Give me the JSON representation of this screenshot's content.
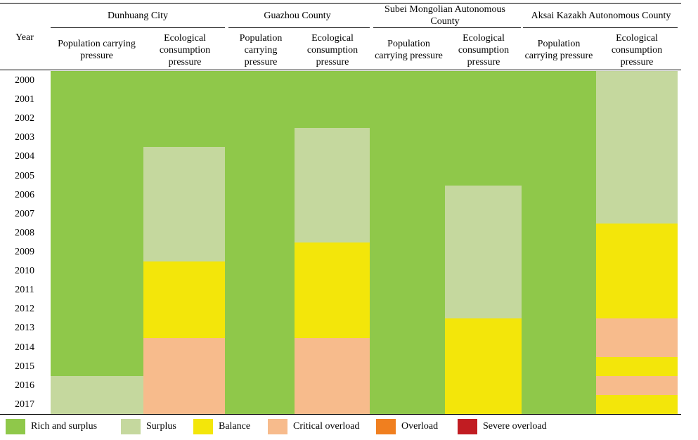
{
  "header": {
    "year_label": "Year",
    "regions": [
      "Dunhuang City",
      "Guazhou County",
      "Subei Mongolian Autonomous County",
      "Aksai Kazakh Autonomous County"
    ],
    "sub_labels": [
      "Population carrying pressure",
      "Ecological consumption pressure"
    ]
  },
  "colors": {
    "Rich and surplus": "#8fc84a",
    "Surplus": "#c5d89e",
    "Balance": "#f3e60a",
    "Critical overload": "#f7bb8c",
    "Overload": "#f07f1f",
    "Severe overload": "#c11c22"
  },
  "chart_data": {
    "type": "heatmap",
    "years": [
      "2000",
      "2001",
      "2002",
      "2003",
      "2004",
      "2005",
      "2006",
      "2007",
      "2008",
      "2009",
      "2010",
      "2011",
      "2012",
      "2013",
      "2014",
      "2015",
      "2016",
      "2017"
    ],
    "columns": [
      {
        "region": "Dunhuang City",
        "indicator": "Population carrying pressure",
        "segments": [
          {
            "from": "2000",
            "to": "2015",
            "level": "Rich and surplus"
          },
          {
            "from": "2016",
            "to": "2017",
            "level": "Surplus"
          }
        ]
      },
      {
        "region": "Dunhuang City",
        "indicator": "Ecological consumption pressure",
        "segments": [
          {
            "from": "2000",
            "to": "2003",
            "level": "Rich and surplus"
          },
          {
            "from": "2004",
            "to": "2009",
            "level": "Surplus"
          },
          {
            "from": "2010",
            "to": "2013",
            "level": "Balance"
          },
          {
            "from": "2014",
            "to": "2017",
            "level": "Critical overload"
          }
        ]
      },
      {
        "region": "Guazhou County",
        "indicator": "Population carrying pressure",
        "segments": [
          {
            "from": "2000",
            "to": "2017",
            "level": "Rich and surplus"
          }
        ]
      },
      {
        "region": "Guazhou County",
        "indicator": "Ecological consumption pressure",
        "segments": [
          {
            "from": "2000",
            "to": "2002",
            "level": "Rich and surplus"
          },
          {
            "from": "2003",
            "to": "2008",
            "level": "Surplus"
          },
          {
            "from": "2009",
            "to": "2013",
            "level": "Balance"
          },
          {
            "from": "2014",
            "to": "2017",
            "level": "Critical overload"
          }
        ]
      },
      {
        "region": "Subei Mongolian Autonomous County",
        "indicator": "Population carrying pressure",
        "segments": [
          {
            "from": "2000",
            "to": "2017",
            "level": "Rich and surplus"
          }
        ]
      },
      {
        "region": "Subei Mongolian Autonomous County",
        "indicator": "Ecological consumption pressure",
        "segments": [
          {
            "from": "2000",
            "to": "2005",
            "level": "Rich and surplus"
          },
          {
            "from": "2006",
            "to": "2012",
            "level": "Surplus"
          },
          {
            "from": "2013",
            "to": "2017",
            "level": "Balance"
          }
        ]
      },
      {
        "region": "Aksai Kazakh Autonomous County",
        "indicator": "Population carrying pressure",
        "segments": [
          {
            "from": "2000",
            "to": "2017",
            "level": "Rich and surplus"
          }
        ]
      },
      {
        "region": "Aksai Kazakh Autonomous County",
        "indicator": "Ecological consumption pressure",
        "segments": [
          {
            "from": "2000",
            "to": "2007",
            "level": "Surplus"
          },
          {
            "from": "2008",
            "to": "2012",
            "level": "Balance"
          },
          {
            "from": "2013",
            "to": "2014",
            "level": "Critical overload"
          },
          {
            "from": "2015",
            "to": "2015",
            "level": "Balance"
          },
          {
            "from": "2016",
            "to": "2016",
            "level": "Critical overload"
          },
          {
            "from": "2017",
            "to": "2017",
            "level": "Balance"
          }
        ]
      }
    ],
    "legend": [
      "Rich and surplus",
      "Surplus",
      "Balance",
      "Critical overload",
      "Overload",
      "Severe overload"
    ]
  }
}
